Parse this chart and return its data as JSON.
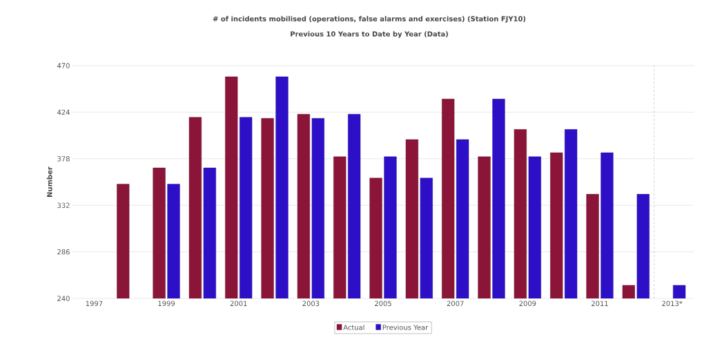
{
  "chart_data": {
    "type": "bar",
    "title": "# of incidents mobilised (operations, false alarms and exercises) (Station FJY10)",
    "subtitle": "Previous 10 Years  to Date by Year (Data)",
    "ylabel": "Number",
    "x": [
      1998,
      1999,
      2000,
      2001,
      2002,
      2003,
      2004,
      2005,
      2006,
      2007,
      2008,
      2009,
      2010,
      2011,
      2012,
      2013
    ],
    "series": [
      {
        "name": "Actual",
        "color": "#8b1538",
        "values": [
          353,
          369,
          419,
          459,
          418,
          422,
          380,
          359,
          397,
          437,
          380,
          407,
          384,
          343,
          253,
          null
        ]
      },
      {
        "name": "Previous Year",
        "color": "#2e0fc8",
        "values": [
          null,
          353,
          369,
          419,
          459,
          418,
          422,
          380,
          359,
          397,
          437,
          380,
          407,
          384,
          343,
          253
        ]
      }
    ],
    "xlim": [
      1996.4,
      2013.6
    ],
    "xticks": [
      1997,
      1999,
      2001,
      2003,
      2005,
      2007,
      2009,
      2011,
      {
        "value": 2013,
        "label": "2013*"
      }
    ],
    "ylim": [
      240,
      470
    ],
    "yticks": [
      240,
      286,
      332,
      378,
      424,
      470
    ],
    "ref_lines": [
      {
        "axis": "x",
        "value": 2012.5,
        "color": "#808080",
        "line_style": "dashed"
      }
    ],
    "grid": "y",
    "legend": "bottom"
  }
}
